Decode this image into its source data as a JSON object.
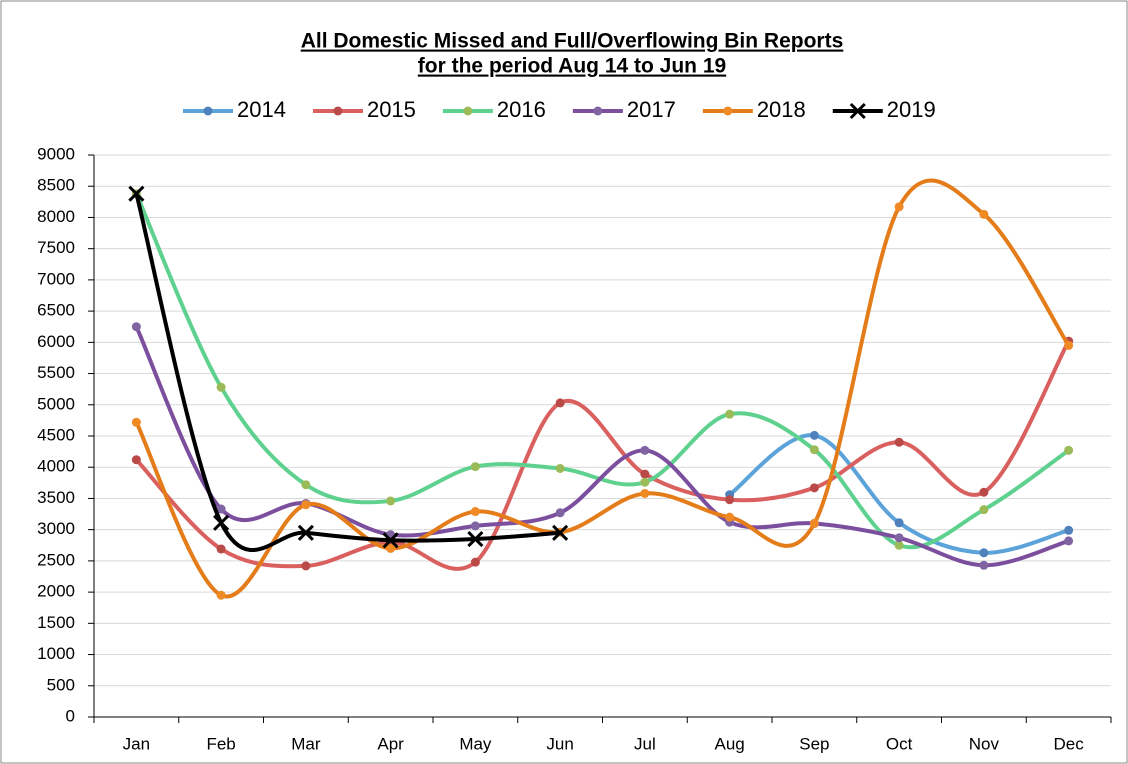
{
  "chart_data": {
    "type": "line",
    "smooth": true,
    "title": [
      "All Domestic Missed and Full/Overflowing Bin Reports",
      "for the period Aug 14 to Jun 19"
    ],
    "categories": [
      "Jan",
      "Feb",
      "Mar",
      "Apr",
      "May",
      "Jun",
      "Jul",
      "Aug",
      "Sep",
      "Oct",
      "Nov",
      "Dec"
    ],
    "series": [
      {
        "name": "2014",
        "color": "#5ba3d9",
        "marker_color": "#4f81bd",
        "marker": "circle",
        "values": [
          null,
          null,
          null,
          null,
          null,
          null,
          null,
          3560,
          4510,
          3110,
          2630,
          2990
        ]
      },
      {
        "name": "2015",
        "color": "#d9605e",
        "marker_color": "#b94a48",
        "marker": "circle",
        "values": [
          4120,
          2690,
          2420,
          2800,
          2480,
          5030,
          3890,
          3480,
          3670,
          4400,
          3600,
          6020
        ]
      },
      {
        "name": "2016",
        "color": "#5fd18e",
        "marker_color": "#9bbb59",
        "marker": "circle",
        "values": [
          8380,
          5280,
          3720,
          3460,
          4010,
          3980,
          3760,
          4850,
          4280,
          2750,
          3320,
          4270
        ]
      },
      {
        "name": "2017",
        "color": "#7b4f9e",
        "marker_color": "#8064a2",
        "marker": "circle",
        "values": [
          6250,
          3330,
          3420,
          2920,
          3060,
          3270,
          4270,
          3120,
          3100,
          2870,
          2430,
          2820
        ]
      },
      {
        "name": "2018",
        "color": "#e57c1a",
        "marker_color": "#f08a24",
        "marker": "circle",
        "values": [
          4720,
          1950,
          3400,
          2700,
          3290,
          2960,
          3580,
          3200,
          3100,
          8170,
          8050,
          5950
        ]
      },
      {
        "name": "2019",
        "color": "#000000",
        "marker_color": "#000000",
        "marker": "x",
        "values": [
          8380,
          3110,
          2950,
          2830,
          2850,
          2950,
          null,
          null,
          null,
          null,
          null,
          null
        ]
      }
    ],
    "ylim": [
      0,
      9000
    ],
    "yticks": [
      0,
      500,
      1000,
      1500,
      2000,
      2500,
      3000,
      3500,
      4000,
      4500,
      5000,
      5500,
      6000,
      6500,
      7000,
      7500,
      8000,
      8500,
      9000
    ],
    "grid": true,
    "legend": "top"
  }
}
